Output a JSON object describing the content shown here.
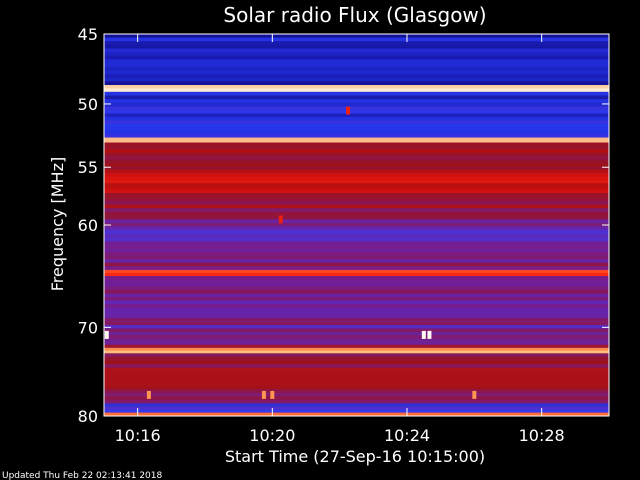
{
  "chart_data": {
    "type": "heatmap",
    "title": "Solar radio Flux (Glasgow)",
    "ylabel": "Frequency [MHz]",
    "xlabel": "Start Time (27-Sep-16 10:15:00)",
    "y_range": [
      45,
      80
    ],
    "y_scale": "log",
    "y_ticks": [
      45,
      50,
      55,
      60,
      70,
      80
    ],
    "x_range": [
      "10:15:00",
      "10:30:00"
    ],
    "x_ticks": [
      "10:16",
      "10:20",
      "10:24",
      "10:28"
    ],
    "grid": false,
    "colormap": [
      "#080060",
      "#1a1ab0",
      "#2b40ff",
      "#7020a0",
      "#a01010",
      "#d01010",
      "#ff2a10",
      "#ffb060",
      "#fffaf0"
    ],
    "bands": [
      {
        "from": 45.0,
        "to": 47.8,
        "level": 0.15
      },
      {
        "from": 47.8,
        "to": 48.6,
        "level": 0.12
      },
      {
        "from": 48.6,
        "to": 49.1,
        "level": 0.95
      },
      {
        "from": 49.1,
        "to": 50.2,
        "level": 0.18
      },
      {
        "from": 50.2,
        "to": 52.6,
        "level": 0.2
      },
      {
        "from": 52.6,
        "to": 53.0,
        "level": 0.85
      },
      {
        "from": 53.0,
        "to": 55.5,
        "level": 0.5
      },
      {
        "from": 55.5,
        "to": 57.2,
        "level": 0.62
      },
      {
        "from": 57.2,
        "to": 59.5,
        "level": 0.48
      },
      {
        "from": 59.5,
        "to": 61.5,
        "level": 0.35
      },
      {
        "from": 61.5,
        "to": 64.2,
        "level": 0.4
      },
      {
        "from": 64.2,
        "to": 64.8,
        "level": 0.72
      },
      {
        "from": 64.8,
        "to": 70.5,
        "level": 0.38
      },
      {
        "from": 70.5,
        "to": 72.2,
        "level": 0.43
      },
      {
        "from": 72.2,
        "to": 72.8,
        "level": 0.88
      },
      {
        "from": 72.8,
        "to": 78.5,
        "level": 0.48
      },
      {
        "from": 78.5,
        "to": 79.6,
        "level": 0.3
      },
      {
        "from": 79.6,
        "to": 80.0,
        "level": 0.78
      }
    ],
    "bursts": [
      {
        "time": "10:15:05",
        "freq": 70.8,
        "level": 1.0
      },
      {
        "time": "10:24:30",
        "freq": 70.8,
        "level": 1.0
      },
      {
        "time": "10:24:40",
        "freq": 70.8,
        "level": 1.0
      },
      {
        "time": "10:22:15",
        "freq": 50.5,
        "level": 0.7
      },
      {
        "time": "10:20:15",
        "freq": 59.5,
        "level": 0.7
      },
      {
        "time": "10:16:20",
        "freq": 77.5,
        "level": 0.85
      },
      {
        "time": "10:19:45",
        "freq": 77.5,
        "level": 0.85
      },
      {
        "time": "10:20:00",
        "freq": 77.5,
        "level": 0.85
      },
      {
        "time": "10:26:00",
        "freq": 77.5,
        "level": 0.85
      }
    ]
  },
  "footer": {
    "updated": "Updated Thu Feb 22 02:13:41 2018"
  }
}
